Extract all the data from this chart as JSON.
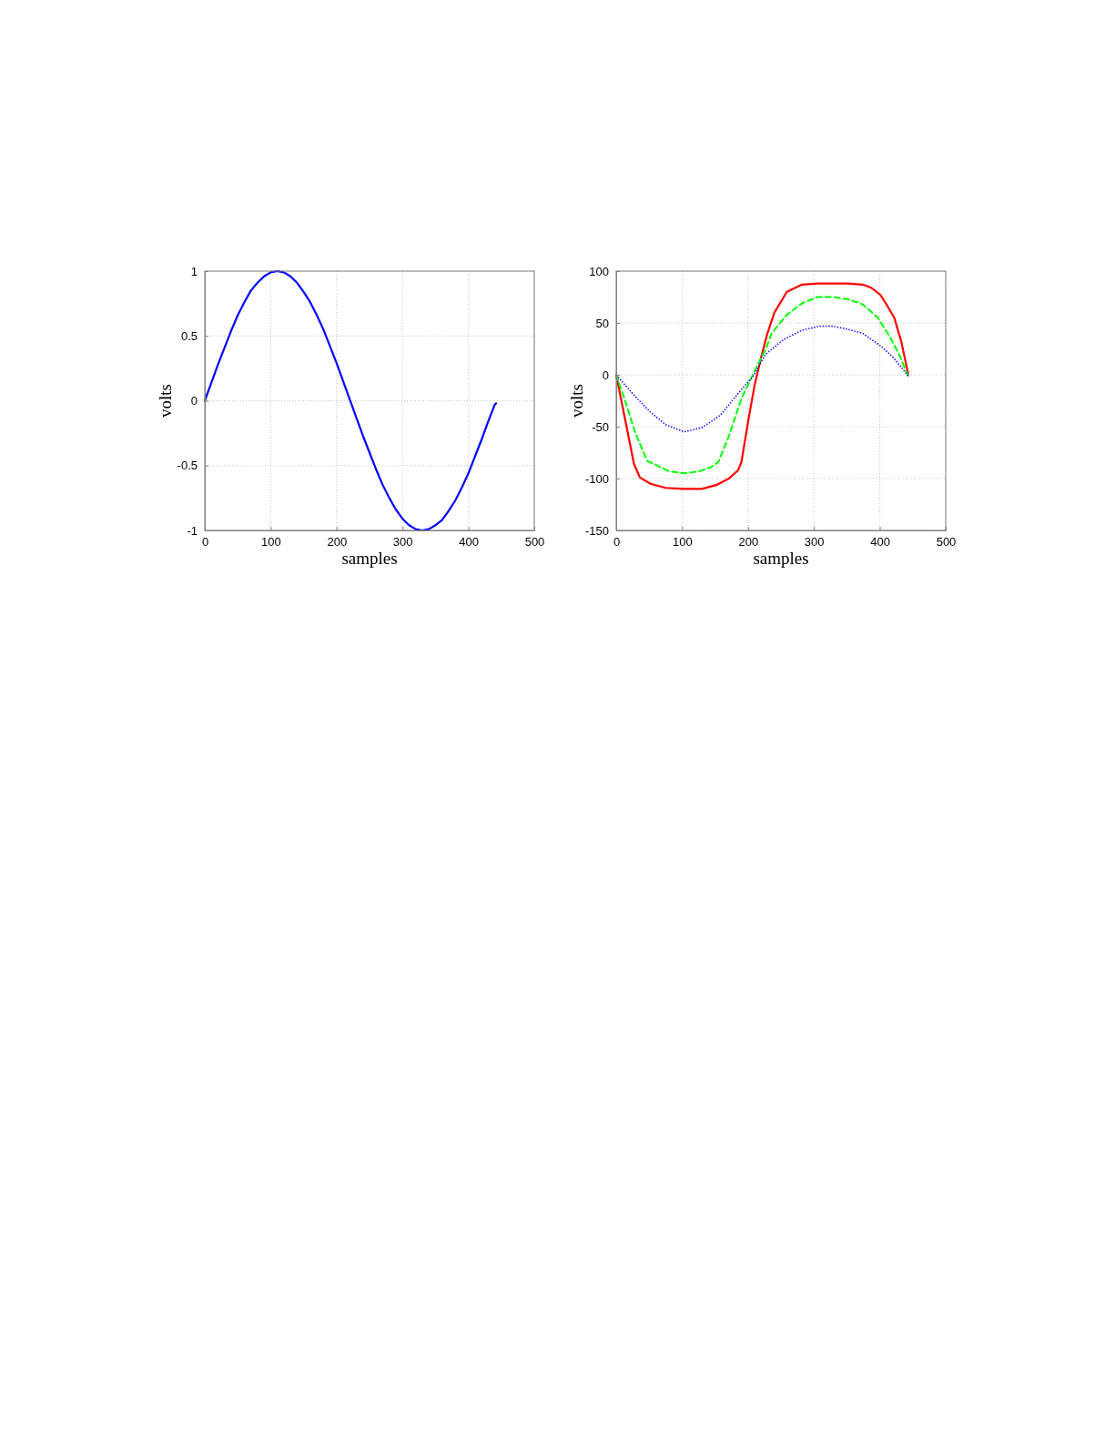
{
  "chart_data": [
    {
      "type": "line",
      "xlabel": "samples",
      "ylabel": "volts",
      "xlim": [
        0,
        500
      ],
      "ylim": [
        -1,
        1
      ],
      "xticks": [
        0,
        100,
        200,
        300,
        400,
        500
      ],
      "yticks": [
        -1,
        -0.5,
        0,
        0.5,
        1
      ],
      "grid": true,
      "series": [
        {
          "color": "#0000ff",
          "line_style": "solid",
          "x": [
            0,
            10,
            20,
            30,
            40,
            50,
            60,
            70,
            80,
            90,
            100,
            110,
            120,
            130,
            140,
            150,
            160,
            170,
            180,
            190,
            200,
            210,
            220,
            230,
            240,
            250,
            260,
            270,
            280,
            290,
            300,
            310,
            320,
            330,
            340,
            350,
            360,
            370,
            380,
            390,
            400,
            410,
            420,
            430,
            440,
            442
          ],
          "values": [
            0,
            0.14,
            0.28,
            0.41,
            0.54,
            0.66,
            0.76,
            0.85,
            0.91,
            0.96,
            0.99,
            1.0,
            0.99,
            0.96,
            0.91,
            0.84,
            0.76,
            0.66,
            0.55,
            0.42,
            0.29,
            0.15,
            0.01,
            -0.13,
            -0.27,
            -0.4,
            -0.53,
            -0.65,
            -0.75,
            -0.84,
            -0.91,
            -0.96,
            -0.99,
            -1.0,
            -0.99,
            -0.96,
            -0.92,
            -0.85,
            -0.77,
            -0.67,
            -0.56,
            -0.43,
            -0.3,
            -0.16,
            -0.03,
            -0.02
          ]
        }
      ]
    },
    {
      "type": "line",
      "xlabel": "samples",
      "ylabel": "volts",
      "xlim": [
        0,
        500
      ],
      "ylim": [
        -150,
        100
      ],
      "xticks": [
        0,
        100,
        200,
        300,
        400,
        500
      ],
      "yticks": [
        -150,
        -100,
        -50,
        0,
        50,
        100
      ],
      "grid": true,
      "series": [
        {
          "color": "#ff0000",
          "line_style": "solid",
          "x": [
            0,
            27,
            36,
            52,
            75,
            102,
            130,
            153,
            171,
            185,
            190,
            201,
            210,
            220,
            229,
            240,
            259,
            282,
            305,
            351,
            374,
            387,
            401,
            410,
            422,
            433,
            443
          ],
          "values": [
            0,
            -86,
            -99,
            -105,
            -109,
            -110,
            -110,
            -106,
            -100,
            -92,
            -84,
            -42,
            -10,
            17,
            39,
            60,
            80,
            87,
            88,
            88,
            87,
            84,
            77,
            68,
            55,
            31,
            1
          ]
        },
        {
          "color": "#00ff00",
          "line_style": "dashed",
          "x": [
            0,
            13,
            29,
            47,
            61,
            80,
            103,
            126,
            144,
            155,
            171,
            190,
            208,
            227,
            236,
            259,
            282,
            305,
            328,
            351,
            374,
            397,
            415,
            429,
            443
          ],
          "values": [
            0,
            -24,
            -56,
            -83,
            -87,
            -93,
            -95,
            -93,
            -89,
            -84,
            -59,
            -23,
            1,
            25,
            40,
            58,
            69,
            75,
            75,
            73,
            68,
            55,
            37,
            20,
            -1
          ]
        },
        {
          "color": "#0000ff",
          "line_style": "dotted",
          "x": [
            0,
            29,
            52,
            75,
            103,
            130,
            158,
            185,
            208,
            227,
            254,
            282,
            309,
            328,
            351,
            374,
            401,
            420,
            443
          ],
          "values": [
            0,
            -21,
            -36,
            -48,
            -55,
            -51,
            -39,
            -18,
            -1,
            20,
            34,
            43,
            47,
            47,
            44,
            40,
            28,
            17,
            -1
          ]
        }
      ]
    }
  ]
}
